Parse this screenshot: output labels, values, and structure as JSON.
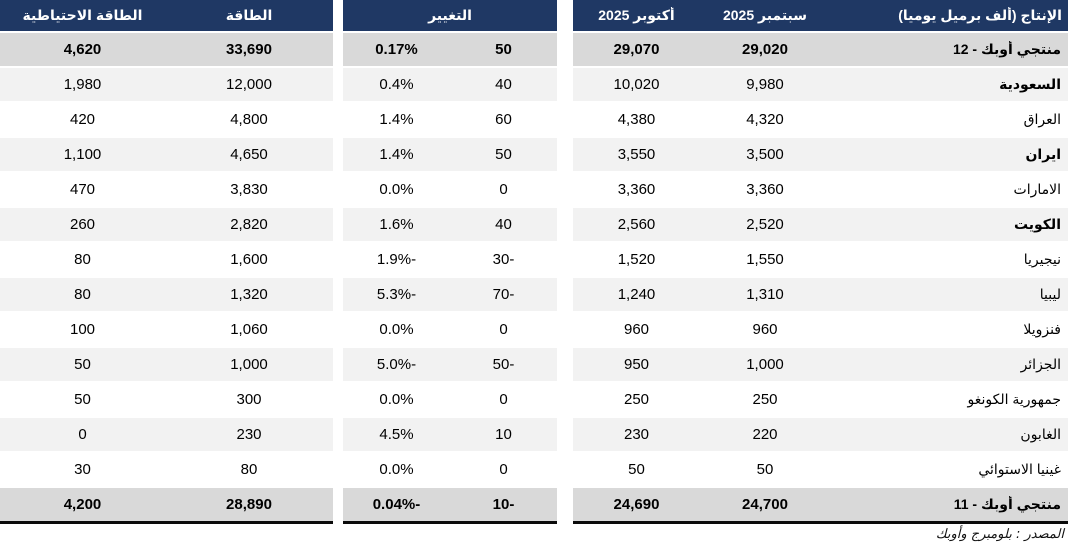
{
  "chart_data": {
    "type": "table",
    "title": "الإنتاج (ألف برميل يوميا)",
    "columns": {
      "name": "الإنتاج (ألف برميل يوميا)",
      "september": "سبتمبر 2025",
      "october": "أكتوبر 2025",
      "change_group": "التغيير",
      "capacity": "الطاقة",
      "spare_capacity": "الطاقة الاحتياطية"
    },
    "rows": [
      {
        "name": "منتجي أوبك - 12",
        "september": "29,020",
        "october": "29,070",
        "change": "50",
        "change_pct": "0.17%",
        "capacity": "33,690",
        "spare_capacity": "4,620",
        "type": "total",
        "bold_name": true
      },
      {
        "name": "السعودية",
        "september": "9,980",
        "october": "10,020",
        "change": "40",
        "change_pct": "0.4%",
        "capacity": "12,000",
        "spare_capacity": "1,980",
        "type": "shaded",
        "bold_name": true
      },
      {
        "name": "العراق",
        "september": "4,320",
        "october": "4,380",
        "change": "60",
        "change_pct": "1.4%",
        "capacity": "4,800",
        "spare_capacity": "420",
        "type": "plain",
        "bold_name": false
      },
      {
        "name": "ايران",
        "september": "3,500",
        "october": "3,550",
        "change": "50",
        "change_pct": "1.4%",
        "capacity": "4,650",
        "spare_capacity": "1,100",
        "type": "shaded",
        "bold_name": true
      },
      {
        "name": "الامارات",
        "september": "3,360",
        "october": "3,360",
        "change": "0",
        "change_pct": "0.0%",
        "capacity": "3,830",
        "spare_capacity": "470",
        "type": "plain",
        "bold_name": false
      },
      {
        "name": "الكويت",
        "september": "2,520",
        "october": "2,560",
        "change": "40",
        "change_pct": "1.6%",
        "capacity": "2,820",
        "spare_capacity": "260",
        "type": "shaded",
        "bold_name": true
      },
      {
        "name": "نيجيريا",
        "september": "1,550",
        "october": "1,520",
        "change": "-30",
        "change_pct": "-1.9%",
        "capacity": "1,600",
        "spare_capacity": "80",
        "type": "plain",
        "bold_name": false
      },
      {
        "name": "ليبيا",
        "september": "1,310",
        "october": "1,240",
        "change": "-70",
        "change_pct": "-5.3%",
        "capacity": "1,320",
        "spare_capacity": "80",
        "type": "shaded",
        "bold_name": false
      },
      {
        "name": "فنزويلا",
        "september": "960",
        "october": "960",
        "change": "0",
        "change_pct": "0.0%",
        "capacity": "1,060",
        "spare_capacity": "100",
        "type": "plain",
        "bold_name": false
      },
      {
        "name": "الجزائر",
        "september": "1,000",
        "october": "950",
        "change": "-50",
        "change_pct": "-5.0%",
        "capacity": "1,000",
        "spare_capacity": "50",
        "type": "shaded",
        "bold_name": false
      },
      {
        "name": "جمهورية الكونغو",
        "september": "250",
        "october": "250",
        "change": "0",
        "change_pct": "0.0%",
        "capacity": "300",
        "spare_capacity": "50",
        "type": "plain",
        "bold_name": false
      },
      {
        "name": "الغابون",
        "september": "220",
        "october": "230",
        "change": "10",
        "change_pct": "4.5%",
        "capacity": "230",
        "spare_capacity": "0",
        "type": "shaded",
        "bold_name": false
      },
      {
        "name": "غينيا الاستوائي",
        "september": "50",
        "october": "50",
        "change": "0",
        "change_pct": "0.0%",
        "capacity": "80",
        "spare_capacity": "30",
        "type": "plain",
        "bold_name": false
      },
      {
        "name": "منتجي أوبك - 11",
        "september": "24,700",
        "october": "24,690",
        "change": "-10",
        "change_pct": "-0.04%",
        "capacity": "28,890",
        "spare_capacity": "4,200",
        "type": "total",
        "bold_name": true
      }
    ]
  },
  "footer": {
    "source": "المصدر : بلومبرج وأوبك"
  },
  "colors": {
    "header_bg": "#1F3864",
    "header_text": "#FFFFFF",
    "total_row_bg": "#D9D9D9",
    "shaded_row_bg": "#F2F2F2"
  }
}
